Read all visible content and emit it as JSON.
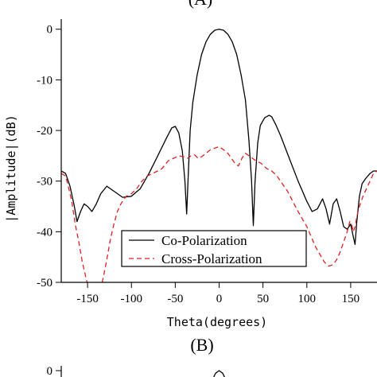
{
  "panel_labels": {
    "top": "(A)",
    "middle": "(B)"
  },
  "chart_data": [
    {
      "type": "line",
      "title": "",
      "xlabel": "Theta(degrees)",
      "ylabel": "|Amplitude|(dB)",
      "xlim": [
        -180,
        180
      ],
      "ylim": [
        -50,
        2
      ],
      "xticks": [
        -150,
        -100,
        -50,
        0,
        50,
        100,
        150
      ],
      "yticks": [
        0,
        -10,
        -20,
        -30,
        -40,
        -50
      ],
      "legend_position": "bottom-center",
      "series": [
        {
          "name": "Co-Polarization",
          "color": "#000000",
          "style": "solid",
          "points": [
            [
              -180,
              -28
            ],
            [
              -175,
              -28.5
            ],
            [
              -170,
              -31
            ],
            [
              -165,
              -35
            ],
            [
              -162,
              -38
            ],
            [
              -158,
              -36
            ],
            [
              -154,
              -34.5
            ],
            [
              -150,
              -35
            ],
            [
              -145,
              -36
            ],
            [
              -140,
              -34.5
            ],
            [
              -135,
              -32.5
            ],
            [
              -128,
              -31
            ],
            [
              -120,
              -32
            ],
            [
              -110,
              -33.2
            ],
            [
              -100,
              -33
            ],
            [
              -90,
              -31.5
            ],
            [
              -80,
              -28.5
            ],
            [
              -70,
              -25
            ],
            [
              -60,
              -21.5
            ],
            [
              -54,
              -19.5
            ],
            [
              -50,
              -19.2
            ],
            [
              -46,
              -20.5
            ],
            [
              -42,
              -24
            ],
            [
              -39,
              -30
            ],
            [
              -37,
              -36.5
            ],
            [
              -35,
              -28
            ],
            [
              -33,
              -20
            ],
            [
              -30,
              -14.5
            ],
            [
              -25,
              -9
            ],
            [
              -20,
              -5
            ],
            [
              -15,
              -2.5
            ],
            [
              -10,
              -1
            ],
            [
              -5,
              -0.2
            ],
            [
              0,
              0
            ],
            [
              5,
              -0.2
            ],
            [
              10,
              -1
            ],
            [
              15,
              -2.5
            ],
            [
              20,
              -5
            ],
            [
              25,
              -9
            ],
            [
              30,
              -14
            ],
            [
              34,
              -22
            ],
            [
              37,
              -30
            ],
            [
              39,
              -38.8
            ],
            [
              41,
              -30
            ],
            [
              44,
              -22.5
            ],
            [
              47,
              -19
            ],
            [
              52,
              -17.5
            ],
            [
              57,
              -17
            ],
            [
              60,
              -17.3
            ],
            [
              65,
              -19
            ],
            [
              70,
              -21
            ],
            [
              80,
              -25.5
            ],
            [
              90,
              -30
            ],
            [
              100,
              -34
            ],
            [
              106,
              -36
            ],
            [
              112,
              -35.5
            ],
            [
              118,
              -33.5
            ],
            [
              122,
              -35.5
            ],
            [
              126,
              -38.5
            ],
            [
              130,
              -34.5
            ],
            [
              134,
              -33.5
            ],
            [
              138,
              -36
            ],
            [
              142,
              -39
            ],
            [
              146,
              -39.5
            ],
            [
              150,
              -38.5
            ],
            [
              153,
              -41
            ],
            [
              155,
              -42.5
            ],
            [
              157,
              -38
            ],
            [
              160,
              -33
            ],
            [
              163,
              -30.5
            ],
            [
              167,
              -29.5
            ],
            [
              172,
              -28.5
            ],
            [
              176,
              -28
            ],
            [
              180,
              -28
            ]
          ]
        },
        {
          "name": "Cross-Polarization",
          "color": "#dd2222",
          "style": "dashed",
          "points": [
            [
              -180,
              -28.5
            ],
            [
              -175,
              -29
            ],
            [
              -172,
              -31
            ],
            [
              -168,
              -34
            ],
            [
              -164,
              -38.5
            ],
            [
              -160,
              -42
            ],
            [
              -156,
              -46
            ],
            [
              -152,
              -49
            ],
            [
              -148,
              -52
            ],
            [
              -144,
              -54
            ],
            [
              -140,
              -54
            ],
            [
              -136,
              -52
            ],
            [
              -132,
              -49
            ],
            [
              -128,
              -45.5
            ],
            [
              -124,
              -41.5
            ],
            [
              -120,
              -38.5
            ],
            [
              -116,
              -36
            ],
            [
              -112,
              -34.5
            ],
            [
              -106,
              -33
            ],
            [
              -100,
              -32.5
            ],
            [
              -94,
              -31.5
            ],
            [
              -88,
              -30
            ],
            [
              -82,
              -29
            ],
            [
              -76,
              -28.5
            ],
            [
              -70,
              -28
            ],
            [
              -65,
              -27.5
            ],
            [
              -58,
              -26
            ],
            [
              -52,
              -25.5
            ],
            [
              -46,
              -25
            ],
            [
              -40,
              -25.2
            ],
            [
              -36,
              -25.5
            ],
            [
              -32,
              -25
            ],
            [
              -28,
              -24.8
            ],
            [
              -24,
              -25.5
            ],
            [
              -20,
              -25.2
            ],
            [
              -15,
              -24.5
            ],
            [
              -10,
              -23.8
            ],
            [
              -5,
              -23.5
            ],
            [
              0,
              -23.2
            ],
            [
              5,
              -23.8
            ],
            [
              10,
              -24.5
            ],
            [
              14,
              -25.5
            ],
            [
              18,
              -26.5
            ],
            [
              22,
              -27
            ],
            [
              26,
              -25.5
            ],
            [
              30,
              -24.5
            ],
            [
              34,
              -25
            ],
            [
              38,
              -25.5
            ],
            [
              42,
              -26
            ],
            [
              48,
              -26.5
            ],
            [
              54,
              -27.5
            ],
            [
              60,
              -28
            ],
            [
              66,
              -29
            ],
            [
              72,
              -30.5
            ],
            [
              78,
              -32
            ],
            [
              84,
              -34
            ],
            [
              90,
              -36
            ],
            [
              95,
              -37.5
            ],
            [
              100,
              -39
            ],
            [
              105,
              -41
            ],
            [
              110,
              -43
            ],
            [
              115,
              -44.5
            ],
            [
              120,
              -46
            ],
            [
              125,
              -46.8
            ],
            [
              130,
              -46.5
            ],
            [
              134,
              -45.5
            ],
            [
              138,
              -44
            ],
            [
              142,
              -42
            ],
            [
              146,
              -40
            ],
            [
              149,
              -38
            ],
            [
              151,
              -38.5
            ],
            [
              153,
              -40
            ],
            [
              155,
              -39
            ],
            [
              157,
              -37
            ],
            [
              160,
              -35
            ],
            [
              164,
              -33
            ],
            [
              168,
              -31.5
            ],
            [
              172,
              -30
            ],
            [
              176,
              -28.5
            ],
            [
              180,
              -28
            ]
          ]
        }
      ]
    },
    {
      "type": "line",
      "title": "",
      "xlabel": "",
      "ylabel": "",
      "xlim": [
        -180,
        180
      ],
      "ylim": [
        -50,
        2
      ],
      "yticks": [
        0
      ],
      "series": [
        {
          "name": "",
          "color": "#000000",
          "style": "solid",
          "points": [
            [
              -8,
              -3
            ],
            [
              -4,
              -0.8
            ],
            [
              0,
              0
            ],
            [
              4,
              -0.8
            ],
            [
              8,
              -3
            ]
          ]
        }
      ]
    }
  ]
}
